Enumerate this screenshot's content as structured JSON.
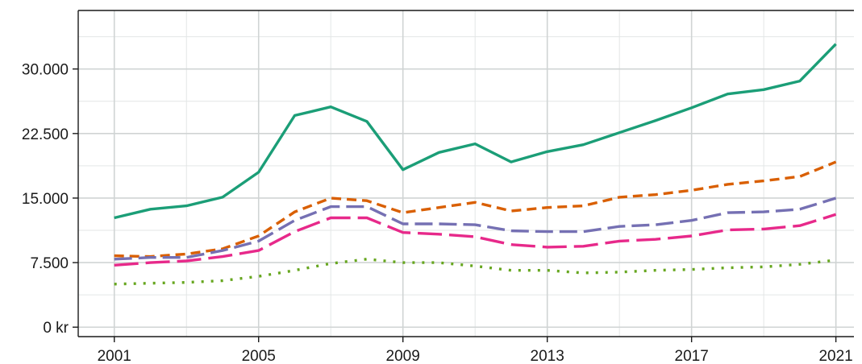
{
  "chart_data": {
    "type": "line",
    "title": "",
    "xlabel": "",
    "ylabel": "",
    "x": [
      2001,
      2002,
      2003,
      2004,
      2005,
      2006,
      2007,
      2008,
      2009,
      2010,
      2011,
      2012,
      2013,
      2014,
      2015,
      2016,
      2017,
      2018,
      2019,
      2020,
      2021
    ],
    "xlim": [
      2000.0,
      2021.5
    ],
    "ylim": [
      -1100,
      36800
    ],
    "x_ticks": [
      2001,
      2005,
      2009,
      2013,
      2017,
      2021
    ],
    "x_tick_labels": [
      "2001",
      "2005",
      "2009",
      "2013",
      "2017",
      "2021"
    ],
    "y_ticks": [
      0,
      7500,
      15000,
      22500,
      30000
    ],
    "y_tick_labels": [
      "0 kr",
      "7.500",
      "15.000",
      "22.500",
      "30.000"
    ],
    "x_minor_ticks": [
      2003,
      2007,
      2011,
      2015,
      2019
    ],
    "y_minor_ticks": [
      3750,
      11250,
      18750,
      26250,
      33750
    ],
    "grid": true,
    "legend": "none",
    "series": [
      {
        "color": "#1b9e77",
        "dash": "solid",
        "values": [
          12700,
          13700,
          14100,
          15100,
          18000,
          24600,
          25600,
          23900,
          18300,
          20300,
          21300,
          19200,
          20400,
          21200,
          22600,
          24000,
          25500,
          27100,
          27600,
          28600,
          32900
        ]
      },
      {
        "color": "#d95f02",
        "dash": "short-dash",
        "values": [
          8300,
          8200,
          8500,
          9100,
          10600,
          13400,
          15000,
          14700,
          13300,
          13900,
          14500,
          13500,
          13900,
          14100,
          15100,
          15400,
          15900,
          16600,
          17000,
          17500,
          19200
        ]
      },
      {
        "color": "#7570b3",
        "dash": "long-dash",
        "values": [
          7900,
          8100,
          8100,
          8900,
          10000,
          12400,
          14000,
          14000,
          12000,
          12000,
          11900,
          11200,
          11100,
          11100,
          11700,
          11900,
          12400,
          13300,
          13400,
          13700,
          15000
        ]
      },
      {
        "color": "#e7298a",
        "dash": "very-long-dash",
        "values": [
          7200,
          7500,
          7700,
          8200,
          8900,
          11100,
          12700,
          12700,
          11000,
          10800,
          10500,
          9600,
          9300,
          9400,
          10000,
          10200,
          10600,
          11300,
          11400,
          11800,
          13100
        ]
      },
      {
        "color": "#66a61e",
        "dash": "dotted",
        "values": [
          5000,
          5100,
          5200,
          5400,
          5900,
          6600,
          7400,
          7900,
          7500,
          7500,
          7100,
          6600,
          6600,
          6300,
          6400,
          6600,
          6700,
          6900,
          7000,
          7300,
          7800
        ]
      }
    ]
  }
}
